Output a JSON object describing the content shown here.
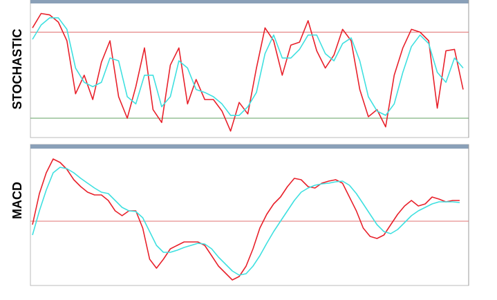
{
  "chart_data": [
    {
      "type": "line",
      "title": "STOCHASTIC",
      "ylim": [
        7,
        100
      ],
      "hlines": [
        {
          "value": 80,
          "color": "#e07070"
        },
        {
          "value": 20,
          "color": "#60a060"
        }
      ],
      "series": [
        {
          "color": "#e8202a",
          "values": [
            83,
            93,
            92,
            87,
            74,
            37,
            50,
            33,
            59,
            74,
            35,
            20,
            42,
            69,
            26,
            17,
            57,
            69,
            30,
            47,
            33,
            33,
            25,
            11,
            31,
            23,
            55,
            83,
            74,
            50,
            71,
            73,
            88,
            67,
            55,
            64,
            82,
            74,
            40,
            21,
            26,
            14,
            50,
            69,
            82,
            80,
            74,
            27,
            67,
            68,
            40
          ]
        },
        {
          "color": "#3ee0e0",
          "values": [
            75,
            85,
            90,
            90,
            82,
            55,
            45,
            42,
            45,
            62,
            60,
            35,
            30,
            50,
            50,
            28,
            35,
            60,
            55,
            40,
            38,
            35,
            30,
            22,
            22,
            28,
            38,
            65,
            78,
            62,
            62,
            68,
            78,
            78,
            65,
            60,
            72,
            76,
            60,
            35,
            25,
            22,
            30,
            52,
            70,
            78,
            72,
            52,
            45,
            62,
            55
          ]
        }
      ]
    },
    {
      "type": "line",
      "title": "MACD",
      "ylim": [
        -90,
        105
      ],
      "hlines": [
        {
          "value": 0,
          "color": "#e07070"
        }
      ],
      "series": [
        {
          "color": "#e8202a",
          "values": [
            -5,
            40,
            70,
            90,
            85,
            75,
            60,
            50,
            42,
            38,
            38,
            30,
            15,
            8,
            15,
            15,
            -10,
            -55,
            -68,
            -55,
            -40,
            -35,
            -30,
            -30,
            -30,
            -35,
            -50,
            -65,
            -75,
            -85,
            -80,
            -65,
            -40,
            -10,
            10,
            25,
            35,
            50,
            62,
            60,
            50,
            48,
            55,
            58,
            60,
            55,
            35,
            15,
            -10,
            -22,
            -25,
            -20,
            -5,
            10,
            22,
            30,
            22,
            25,
            35,
            32,
            28,
            30,
            30
          ]
        },
        {
          "color": "#3ee0e0",
          "values": [
            -20,
            15,
            45,
            70,
            78,
            76,
            70,
            62,
            55,
            48,
            42,
            40,
            30,
            20,
            15,
            14,
            5,
            -15,
            -35,
            -45,
            -45,
            -42,
            -38,
            -35,
            -32,
            -33,
            -40,
            -52,
            -62,
            -72,
            -78,
            -76,
            -65,
            -50,
            -32,
            -15,
            0,
            15,
            30,
            42,
            48,
            52,
            54,
            55,
            57,
            58,
            52,
            40,
            25,
            10,
            -5,
            -15,
            -18,
            -12,
            -2,
            8,
            15,
            20,
            25,
            28,
            28,
            28,
            27
          ]
        }
      ]
    }
  ]
}
